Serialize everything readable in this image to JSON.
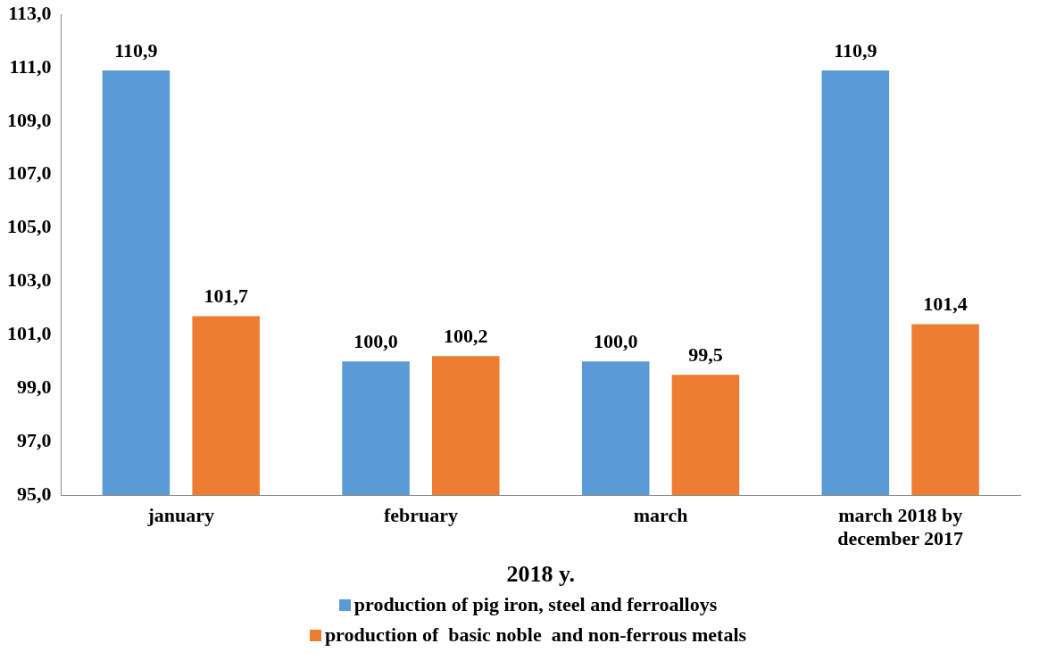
{
  "chart_data": {
    "type": "bar",
    "xlabel": "2018 y.",
    "categories": [
      "january",
      "february",
      "march",
      "march 2018 by december 2017"
    ],
    "series": [
      {
        "name": "production of pig iron, steel and ferroalloys",
        "color": "#5b9bd5",
        "values": [
          110.9,
          100.0,
          100.0,
          110.9
        ],
        "value_labels": [
          "110,9",
          "100,0",
          "100,0",
          "110,9"
        ]
      },
      {
        "name": "production of  basic noble  and non-ferrous metals",
        "color": "#ed7d31",
        "values": [
          101.7,
          100.2,
          99.5,
          101.4
        ],
        "value_labels": [
          "101,7",
          "100,2",
          "99,5",
          "101,4"
        ]
      }
    ],
    "ylim": [
      95,
      113
    ],
    "yticks": [
      {
        "value": 95,
        "label": "95,0"
      },
      {
        "value": 97,
        "label": "97,0"
      },
      {
        "value": 99,
        "label": "99,0"
      },
      {
        "value": 101,
        "label": "101,0"
      },
      {
        "value": 103,
        "label": "103,0"
      },
      {
        "value": 105,
        "label": "105,0"
      },
      {
        "value": 107,
        "label": "107,0"
      },
      {
        "value": 109,
        "label": "109,0"
      },
      {
        "value": 111,
        "label": "111,0"
      },
      {
        "value": 113,
        "label": "113,0"
      }
    ],
    "grid": false,
    "legend": "bottom"
  }
}
